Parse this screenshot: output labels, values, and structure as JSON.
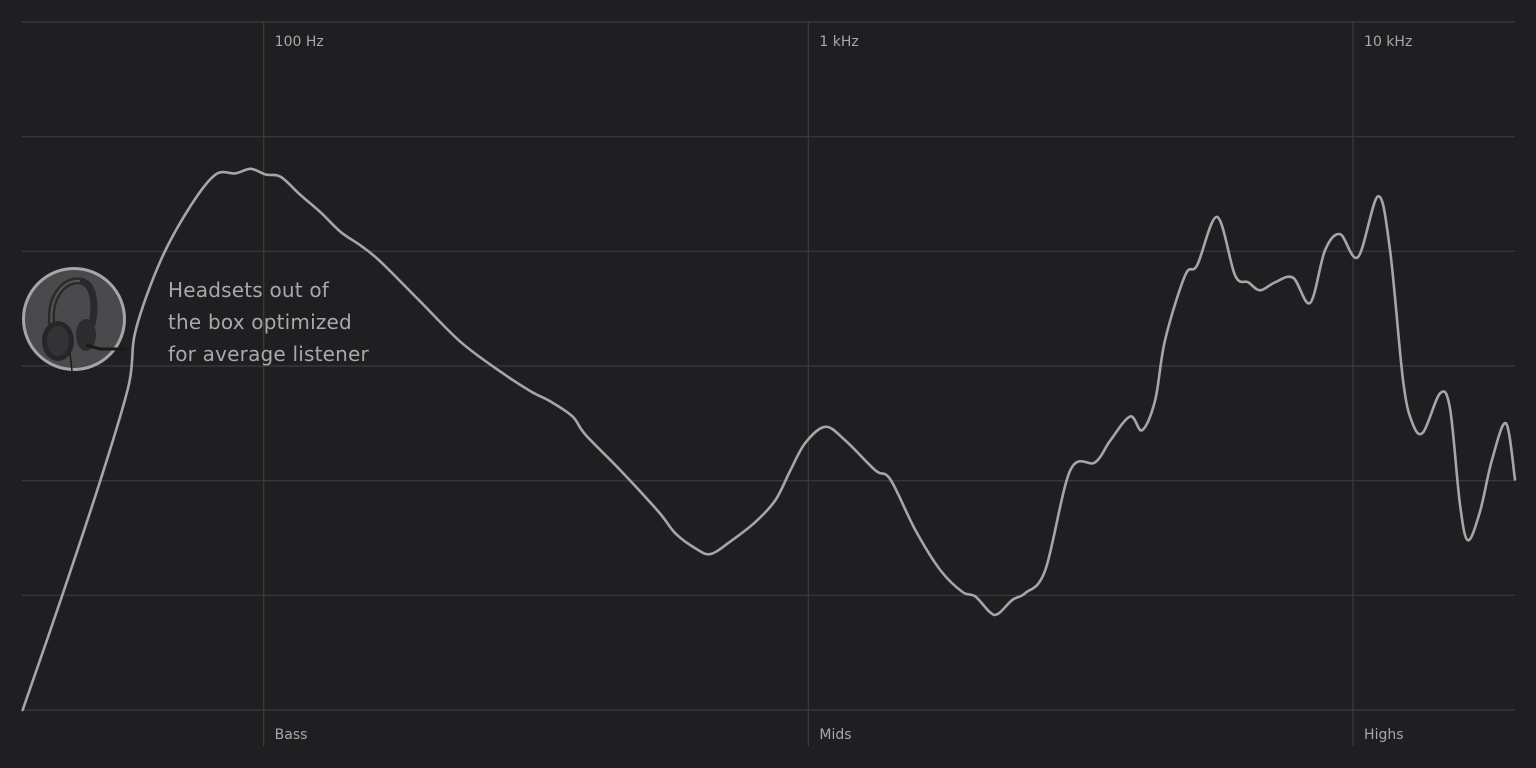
{
  "chart_data": {
    "type": "line",
    "title": "",
    "xlabel": "",
    "ylabel": "",
    "x_scale": "log",
    "xlim": [
      36,
      19830
    ],
    "ylim": [
      0,
      6
    ],
    "grid": true,
    "x_ticks_top": [
      {
        "value": 100,
        "label": "100 Hz"
      },
      {
        "value": 1000,
        "label": "1 kHz"
      },
      {
        "value": 10000,
        "label": "10 kHz"
      }
    ],
    "x_ticks_bottom": [
      {
        "value": 100,
        "label": "Bass"
      },
      {
        "value": 1000,
        "label": "Mids"
      },
      {
        "value": 10000,
        "label": "Highs"
      }
    ],
    "line_color": "#a6a6a8",
    "grid_color": "#3c3c3f",
    "series": [
      {
        "x": [
          36.1,
          42.4,
          50.2,
          56.5,
          58.2,
          64.7,
          73.5,
          81.6,
          88.8,
          94.7,
          100.8,
          107.4,
          116.9,
          127.2,
          138.4,
          150.7,
          163.9,
          194.1,
          229.9,
          272.2,
          309.0,
          336.3,
          369.0,
          389.8,
          451.9,
          530.6,
          570.2,
          620.5,
          661.0,
          719.3,
          799.6,
          869.9,
          926.8,
          987.4,
          1074.5,
          1169.4,
          1327.5,
          1414.5,
          1571.6,
          1746.9,
          1917.2,
          2025.3,
          2157.9,
          2232.2,
          2368.3,
          2502.0,
          2722.7,
          3025.5,
          3362.6,
          3583.0,
          3897.5,
          4100,
          4331,
          4519,
          4917,
          5174,
          5629,
          6074,
          6418,
          6750,
          7193,
          7762,
          8340,
          8884,
          9465,
          10212,
          11115,
          11692,
          12350,
          12833,
          13443,
          14439,
          15066,
          15717,
          16257,
          17101,
          17989,
          19088,
          19830
        ],
        "y": [
          0,
          0.96,
          2.01,
          2.83,
          3.31,
          3.92,
          4.4,
          4.67,
          4.68,
          4.72,
          4.67,
          4.65,
          4.49,
          4.34,
          4.17,
          4.05,
          3.91,
          3.56,
          3.21,
          2.95,
          2.78,
          2.69,
          2.56,
          2.4,
          2.09,
          1.73,
          1.54,
          1.41,
          1.36,
          1.47,
          1.64,
          1.83,
          2.09,
          2.33,
          2.47,
          2.35,
          2.09,
          2.01,
          1.57,
          1.22,
          1.03,
          0.99,
          0.85,
          0.84,
          0.96,
          1.02,
          1.22,
          2.09,
          2.16,
          2.35,
          2.56,
          2.44,
          2.7,
          3.23,
          3.79,
          3.88,
          4.3,
          3.79,
          3.73,
          3.66,
          3.73,
          3.77,
          3.55,
          4.01,
          4.15,
          3.95,
          4.48,
          4.01,
          2.88,
          2.51,
          2.42,
          2.76,
          2.63,
          1.79,
          1.48,
          1.73,
          2.18,
          2.5,
          2.01
        ]
      }
    ]
  },
  "annotation": {
    "icon": "headset-icon",
    "lines": [
      "Headsets out of",
      "the box optimized",
      "for average listener"
    ]
  }
}
